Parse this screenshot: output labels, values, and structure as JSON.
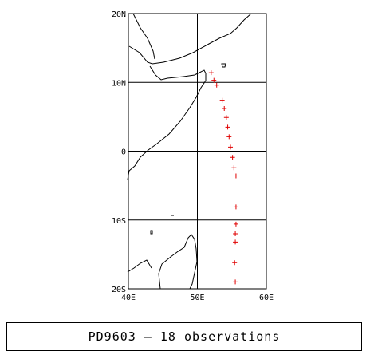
{
  "map": {
    "lon_range": [
      40,
      60
    ],
    "lat_range": [
      -20,
      20
    ],
    "lon_ticks": [
      {
        "value": 40,
        "label": "40E"
      },
      {
        "value": 50,
        "label": "50E"
      },
      {
        "value": 60,
        "label": "60E"
      }
    ],
    "lat_ticks": [
      {
        "value": 20,
        "label": "20N"
      },
      {
        "value": 10,
        "label": "10N"
      },
      {
        "value": 0,
        "label": "0"
      },
      {
        "value": -10,
        "label": "10S"
      },
      {
        "value": -20,
        "label": "20S"
      }
    ],
    "grid": true,
    "marker_color": "#e00000",
    "observations": [
      {
        "lon": 52.0,
        "lat": 11.4
      },
      {
        "lon": 52.4,
        "lat": 10.3
      },
      {
        "lon": 52.8,
        "lat": 9.6
      },
      {
        "lon": 53.6,
        "lat": 7.4
      },
      {
        "lon": 53.9,
        "lat": 6.2
      },
      {
        "lon": 54.2,
        "lat": 4.9
      },
      {
        "lon": 54.4,
        "lat": 3.5
      },
      {
        "lon": 54.6,
        "lat": 2.1
      },
      {
        "lon": 54.8,
        "lat": 0.6
      },
      {
        "lon": 55.1,
        "lat": -0.9
      },
      {
        "lon": 55.3,
        "lat": -2.4
      },
      {
        "lon": 55.6,
        "lat": -3.6
      },
      {
        "lon": 55.6,
        "lat": -8.1
      },
      {
        "lon": 55.6,
        "lat": -10.6
      },
      {
        "lon": 55.5,
        "lat": -12.0
      },
      {
        "lon": 55.5,
        "lat": -13.2
      },
      {
        "lon": 55.4,
        "lat": -16.2
      },
      {
        "lon": 55.5,
        "lat": -19.0
      }
    ]
  },
  "caption": "PD9603 — 18 observations"
}
